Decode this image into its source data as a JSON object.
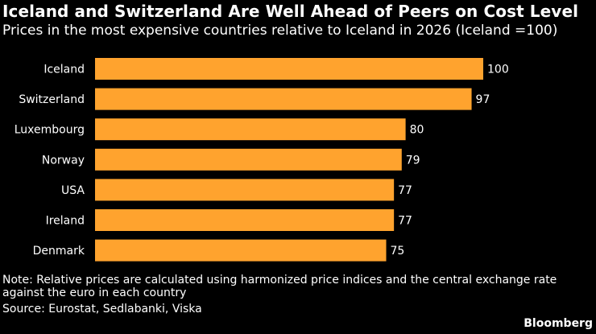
{
  "header": {
    "title": "Iceland and Switzerland Are Well Ahead of Peers on Cost Level",
    "subtitle": "Prices in the most expensive countries relative to Iceland in 2026 (Iceland =100)"
  },
  "footer": {
    "note": "Note: Relative prices are calculated using harmonized price indices and the central exchange rate against the euro in each country",
    "source": "Source: Eurostat, Sedlabanki, Viska",
    "brand": "Bloomberg"
  },
  "colors": {
    "bar": "#ffa32e",
    "background": "#000000",
    "text": "#ffffff"
  },
  "chart_data": {
    "type": "bar",
    "orientation": "horizontal",
    "title": "Iceland and Switzerland Are Well Ahead of Peers on Cost Level",
    "subtitle": "Prices in the most expensive countries relative to Iceland in 2026 (Iceland =100)",
    "categories": [
      "Iceland",
      "Switzerland",
      "Luxembourg",
      "Norway",
      "USA",
      "Ireland",
      "Denmark"
    ],
    "values": [
      100,
      97,
      80,
      79,
      77,
      77,
      75
    ],
    "value_labels": [
      "100",
      "97",
      "80",
      "79",
      "77",
      "77",
      "75"
    ],
    "xlim": [
      0,
      100
    ],
    "grid": false,
    "legend": "none"
  }
}
